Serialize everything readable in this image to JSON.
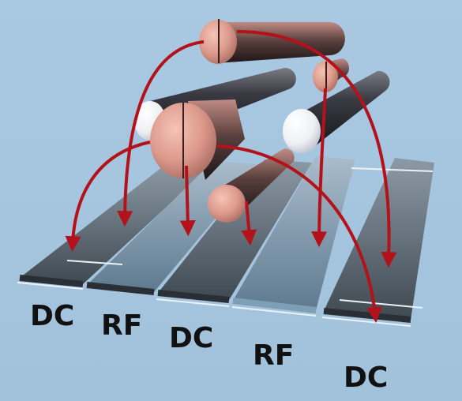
{
  "colors": {
    "background": "#a6c6e0",
    "copper": "#d9968a",
    "steel": "#3c3c44",
    "arrow": "#b3121a",
    "strip_dark": "#4b555e",
    "strip_light": "#7f98ad"
  },
  "strip_labels": [
    "DC",
    "RF",
    "DC",
    "RF",
    "DC"
  ]
}
